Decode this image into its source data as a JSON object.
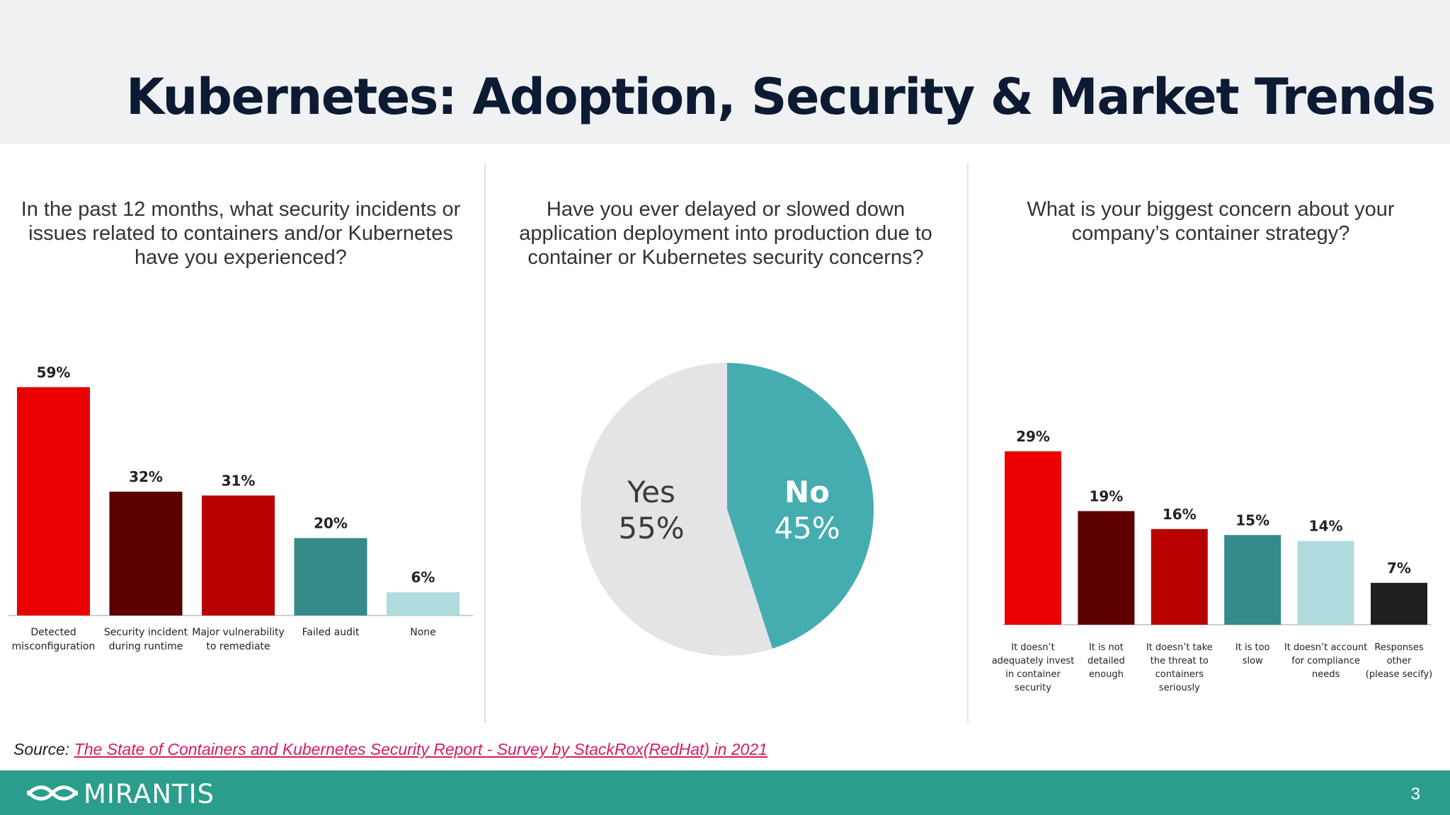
{
  "title": "Kubernetes: Adoption, Security & Market Trends",
  "source": {
    "label": "Source:",
    "link_text": "The State of Containers and Kubernetes Security Report - Survey by StackRox(RedHat) in 2021"
  },
  "footer": {
    "brand": "MIRANTIS",
    "page_number": "3"
  },
  "colors": {
    "bright_red": "#ea0000",
    "dark_maroon": "#5c0000",
    "red": "#b80000",
    "teal": "#378a8a",
    "light_teal": "#b0dcdd",
    "black": "#1f1f22",
    "pie_teal": "#45adb0",
    "pie_grey": "#e4e4e6",
    "footer_teal": "#2a9d8c"
  },
  "chart_data": [
    {
      "type": "bar",
      "question": "In the past 12 months, what security incidents or issues related to containers and/or Kubernetes have you experienced?",
      "categories": [
        [
          "Detected",
          "misconfiguration"
        ],
        [
          "Security incident",
          "during runtime"
        ],
        [
          "Major vulnerability",
          "to remediate"
        ],
        [
          "Failed audit"
        ],
        [
          "None"
        ]
      ],
      "values": [
        59,
        32,
        31,
        20,
        6
      ],
      "value_labels": [
        "59%",
        "32%",
        "31%",
        "20%",
        "6%"
      ],
      "bar_colors": [
        "#ea0000",
        "#5c0000",
        "#b80000",
        "#378a8a",
        "#b0dcdd"
      ],
      "ylim": [
        0,
        60
      ],
      "grid": false
    },
    {
      "type": "pie",
      "question": "Have you ever delayed or slowed down application deployment into production due to container or Kubernetes security concerns?",
      "slices": [
        {
          "label": "Yes",
          "value": 55,
          "value_label": "55%",
          "color": "#e4e4e6"
        },
        {
          "label": "No",
          "value": 45,
          "value_label": "45%",
          "color": "#45adb0"
        }
      ]
    },
    {
      "type": "bar",
      "question": "What is your biggest concern about your company’s container strategy?",
      "categories": [
        [
          "It doesn’t",
          "adequately invest",
          "in container",
          "security"
        ],
        [
          "It is not",
          "detailed",
          "enough"
        ],
        [
          "It doesn’t take",
          "the threat to",
          "containers",
          "seriously"
        ],
        [
          "It is too",
          "slow"
        ],
        [
          "It doesn’t account",
          "for compliance",
          "needs"
        ],
        [
          "Responses",
          "other",
          "(please secify)"
        ]
      ],
      "values": [
        29,
        19,
        16,
        15,
        14,
        7
      ],
      "value_labels": [
        "29%",
        "19%",
        "16%",
        "15%",
        "14%",
        "7%"
      ],
      "bar_colors": [
        "#ea0000",
        "#5c0000",
        "#b80000",
        "#378a8a",
        "#b0dcdd",
        "#1f1f22"
      ],
      "ylim": [
        0,
        30
      ],
      "grid": false
    }
  ]
}
